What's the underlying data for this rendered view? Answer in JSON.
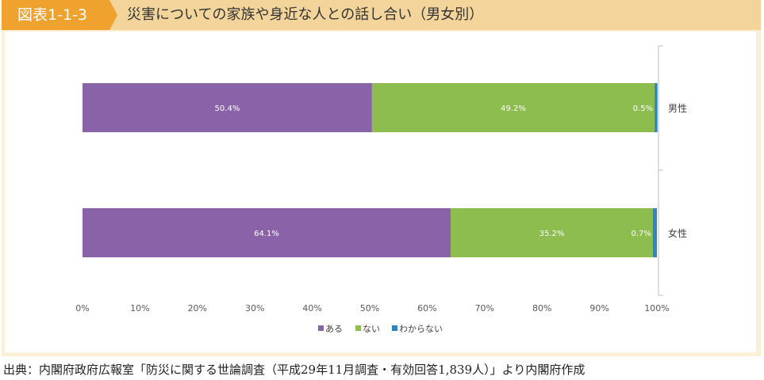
{
  "header": {
    "badge": "図表1-1-3",
    "title": "災害についての家族や身近な人との話し合い（男女別）"
  },
  "colors": {
    "header_bg": "#f3d59c",
    "badge_bg": "#f0a22e",
    "frame_bg": "#faf0d8",
    "series": [
      "#8a62a8",
      "#8dbd4f",
      "#2e86c1"
    ]
  },
  "chart_data": {
    "type": "bar",
    "orientation": "horizontal",
    "stacked": true,
    "categories": [
      "男性",
      "女性"
    ],
    "series": [
      {
        "name": "ある",
        "values": [
          50.4,
          64.1
        ],
        "labels": [
          "50.4%",
          "64.1%"
        ]
      },
      {
        "name": "ない",
        "values": [
          49.2,
          35.2
        ],
        "labels": [
          "49.2%",
          "35.2%"
        ]
      },
      {
        "name": "わからない",
        "values": [
          0.5,
          0.7
        ],
        "labels": [
          "0.5%",
          "0.7%"
        ]
      }
    ],
    "xlim": [
      0,
      100
    ],
    "xticks": [
      "0%",
      "10%",
      "20%",
      "30%",
      "40%",
      "50%",
      "60%",
      "70%",
      "80%",
      "90%",
      "100%"
    ],
    "legend_position": "bottom",
    "grid": false
  },
  "source": "出典：内閣府政府広報室「防災に関する世論調査（平成29年11月調査・有効回答1,839人）」より内閣府作成"
}
